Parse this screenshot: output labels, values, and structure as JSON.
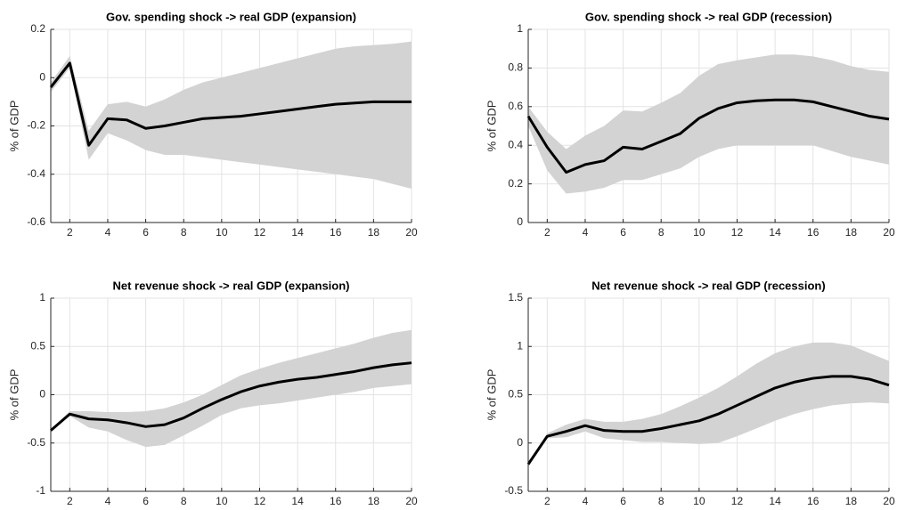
{
  "chart_data": [
    {
      "type": "line",
      "title": "Gov. spending shock -> real GDP (expansion)",
      "y_label": "% of GDP",
      "x": [
        1,
        2,
        3,
        4,
        5,
        6,
        7,
        8,
        9,
        10,
        11,
        12,
        13,
        14,
        15,
        16,
        17,
        18,
        19,
        20
      ],
      "values": [
        -0.04,
        0.06,
        -0.28,
        -0.17,
        -0.175,
        -0.21,
        -0.2,
        -0.185,
        -0.17,
        -0.165,
        -0.16,
        -0.15,
        -0.14,
        -0.13,
        -0.12,
        -0.11,
        -0.105,
        -0.1,
        -0.1,
        -0.1
      ],
      "upper": [
        -0.02,
        0.09,
        -0.22,
        -0.11,
        -0.1,
        -0.12,
        -0.09,
        -0.05,
        -0.02,
        0.0,
        0.02,
        0.04,
        0.06,
        0.08,
        0.1,
        0.12,
        0.13,
        0.135,
        0.14,
        0.15
      ],
      "lower": [
        -0.06,
        0.04,
        -0.34,
        -0.23,
        -0.26,
        -0.3,
        -0.32,
        -0.32,
        -0.33,
        -0.34,
        -0.35,
        -0.36,
        -0.37,
        -0.38,
        -0.39,
        -0.4,
        -0.41,
        -0.42,
        -0.44,
        -0.46
      ],
      "color": "#000000",
      "band_color": "#d3d3d3",
      "xlim": [
        1,
        20
      ],
      "xticks": [
        2,
        4,
        6,
        8,
        10,
        12,
        14,
        16,
        18,
        20
      ],
      "ylim": [
        -0.6,
        0.2
      ],
      "yticks": [
        -0.6,
        -0.4,
        -0.2,
        0,
        0.2
      ],
      "grid": true
    },
    {
      "type": "line",
      "title": "Gov. spending shock -> real GDP (recession)",
      "y_label": "% of GDP",
      "x": [
        1,
        2,
        3,
        4,
        5,
        6,
        7,
        8,
        9,
        10,
        11,
        12,
        13,
        14,
        15,
        16,
        17,
        18,
        19,
        20
      ],
      "values": [
        0.55,
        0.39,
        0.26,
        0.3,
        0.32,
        0.39,
        0.38,
        0.42,
        0.46,
        0.54,
        0.59,
        0.62,
        0.63,
        0.635,
        0.635,
        0.625,
        0.6,
        0.575,
        0.55,
        0.535
      ],
      "upper": [
        0.6,
        0.47,
        0.38,
        0.45,
        0.5,
        0.58,
        0.575,
        0.62,
        0.67,
        0.76,
        0.82,
        0.84,
        0.855,
        0.87,
        0.87,
        0.86,
        0.84,
        0.81,
        0.79,
        0.78
      ],
      "lower": [
        0.5,
        0.27,
        0.15,
        0.16,
        0.18,
        0.22,
        0.22,
        0.25,
        0.28,
        0.34,
        0.38,
        0.4,
        0.4,
        0.4,
        0.4,
        0.4,
        0.37,
        0.34,
        0.32,
        0.3
      ],
      "color": "#000000",
      "band_color": "#d3d3d3",
      "xlim": [
        1,
        20
      ],
      "xticks": [
        2,
        4,
        6,
        8,
        10,
        12,
        14,
        16,
        18,
        20
      ],
      "ylim": [
        0,
        1
      ],
      "yticks": [
        0,
        0.2,
        0.4,
        0.6,
        0.8,
        1
      ],
      "grid": true
    },
    {
      "type": "line",
      "title": "Net revenue shock -> real GDP (expansion)",
      "y_label": "% of GDP",
      "x": [
        1,
        2,
        3,
        4,
        5,
        6,
        7,
        8,
        9,
        10,
        11,
        12,
        13,
        14,
        15,
        16,
        17,
        18,
        19,
        20
      ],
      "values": [
        -0.37,
        -0.2,
        -0.25,
        -0.26,
        -0.29,
        -0.33,
        -0.31,
        -0.24,
        -0.14,
        -0.05,
        0.03,
        0.09,
        0.13,
        0.16,
        0.18,
        0.21,
        0.24,
        0.28,
        0.31,
        0.33
      ],
      "upper": [
        -0.36,
        -0.17,
        -0.17,
        -0.18,
        -0.18,
        -0.17,
        -0.14,
        -0.08,
        0.0,
        0.1,
        0.2,
        0.27,
        0.33,
        0.38,
        0.43,
        0.48,
        0.53,
        0.59,
        0.64,
        0.67
      ],
      "lower": [
        -0.38,
        -0.22,
        -0.34,
        -0.38,
        -0.47,
        -0.54,
        -0.52,
        -0.42,
        -0.32,
        -0.21,
        -0.14,
        -0.11,
        -0.09,
        -0.06,
        -0.03,
        0.0,
        0.03,
        0.07,
        0.09,
        0.11
      ],
      "color": "#000000",
      "band_color": "#d3d3d3",
      "xlim": [
        1,
        20
      ],
      "xticks": [
        2,
        4,
        6,
        8,
        10,
        12,
        14,
        16,
        18,
        20
      ],
      "ylim": [
        -1,
        1
      ],
      "yticks": [
        -1,
        -0.5,
        0,
        0.5,
        1
      ],
      "grid": true
    },
    {
      "type": "line",
      "title": "Net revenue shock -> real GDP (recession)",
      "y_label": "% of GDP",
      "x": [
        1,
        2,
        3,
        4,
        5,
        6,
        7,
        8,
        9,
        10,
        11,
        12,
        13,
        14,
        15,
        16,
        17,
        18,
        19,
        20
      ],
      "values": [
        -0.22,
        0.07,
        0.12,
        0.18,
        0.13,
        0.12,
        0.12,
        0.15,
        0.19,
        0.23,
        0.3,
        0.39,
        0.48,
        0.57,
        0.63,
        0.67,
        0.69,
        0.69,
        0.66,
        0.6
      ],
      "upper": [
        -0.2,
        0.1,
        0.19,
        0.25,
        0.22,
        0.22,
        0.25,
        0.3,
        0.38,
        0.47,
        0.57,
        0.69,
        0.82,
        0.93,
        1.0,
        1.04,
        1.04,
        1.01,
        0.93,
        0.85
      ],
      "lower": [
        -0.24,
        0.05,
        0.06,
        0.12,
        0.05,
        0.03,
        0.01,
        0.01,
        0.0,
        -0.01,
        0.0,
        0.07,
        0.15,
        0.23,
        0.3,
        0.35,
        0.39,
        0.41,
        0.42,
        0.41
      ],
      "color": "#000000",
      "band_color": "#d3d3d3",
      "xlim": [
        1,
        20
      ],
      "xticks": [
        2,
        4,
        6,
        8,
        10,
        12,
        14,
        16,
        18,
        20
      ],
      "ylim": [
        -0.5,
        1.5
      ],
      "yticks": [
        -0.5,
        0,
        0.5,
        1,
        1.5
      ],
      "grid": true
    }
  ]
}
